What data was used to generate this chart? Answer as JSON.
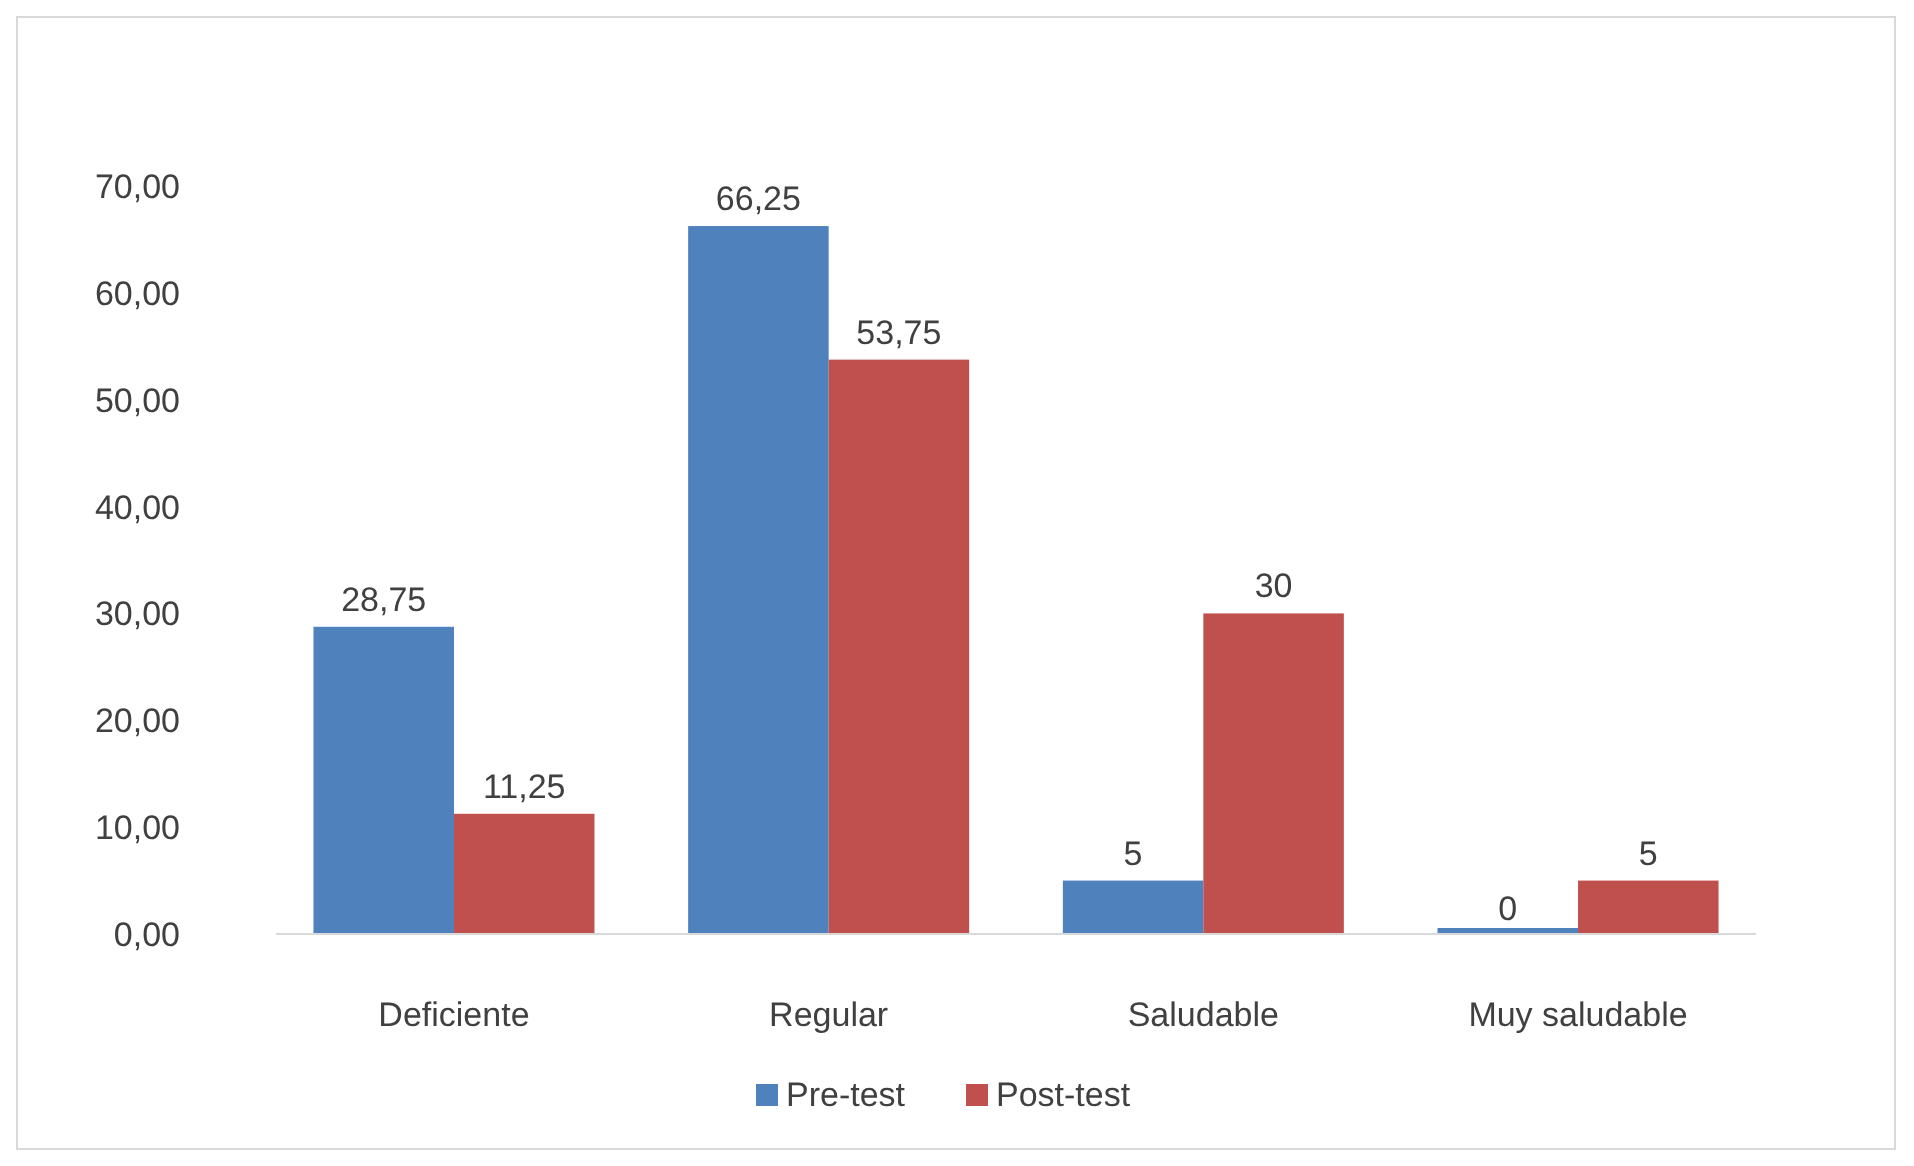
{
  "chart_data": {
    "type": "bar",
    "categories": [
      "Deficiente",
      "Regular",
      "Saludable",
      "Muy saludable"
    ],
    "series": [
      {
        "name": "Pre-test",
        "color": "#4f81bd",
        "values": [
          28.75,
          66.25,
          5,
          0
        ],
        "value_labels": [
          "28,75",
          "66,25",
          "5",
          "0"
        ]
      },
      {
        "name": "Post-test",
        "color": "#c0504d",
        "values": [
          11.25,
          53.75,
          30,
          5
        ],
        "value_labels": [
          "11,25",
          "53,75",
          "30",
          "5"
        ]
      }
    ],
    "ylim": [
      0,
      70
    ],
    "yticks": [
      {
        "value": 0,
        "label": "0,00"
      },
      {
        "value": 10,
        "label": "10,00"
      },
      {
        "value": 20,
        "label": "20,00"
      },
      {
        "value": 30,
        "label": "30,00"
      },
      {
        "value": 40,
        "label": "40,00"
      },
      {
        "value": 50,
        "label": "50,00"
      },
      {
        "value": 60,
        "label": "60,00"
      },
      {
        "value": 70,
        "label": "70,00"
      }
    ],
    "grid": false,
    "legend": "bottom"
  }
}
